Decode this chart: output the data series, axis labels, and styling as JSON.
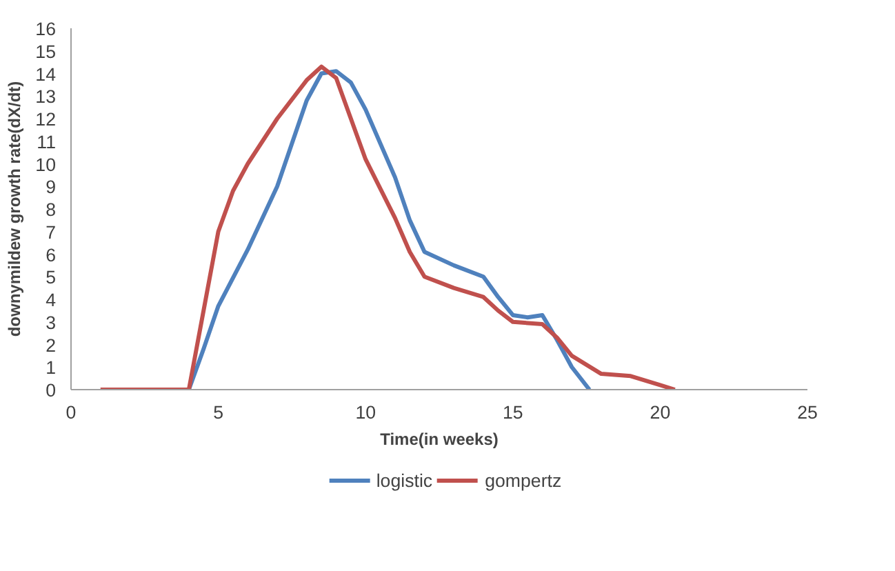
{
  "chart_data": {
    "type": "line",
    "xlabel": "Time(in weeks)",
    "ylabel": "downymildew growth rate(dX/dt)",
    "xlim": [
      0,
      25
    ],
    "xticks": [
      0,
      5,
      10,
      15,
      20,
      25
    ],
    "ylim": [
      0,
      16
    ],
    "yticks": [
      0,
      1,
      2,
      3,
      4,
      5,
      6,
      7,
      8,
      9,
      10,
      11,
      12,
      13,
      14,
      15,
      16
    ],
    "grid": false,
    "legend": "bottom",
    "line_style": "solid",
    "marker": "none",
    "series": [
      {
        "name": "logistic",
        "color": "#4f81bd",
        "x": [
          4,
          4.5,
          5,
          6,
          7,
          8,
          8.5,
          9,
          9.5,
          10,
          11,
          11.5,
          12,
          13,
          14,
          14.5,
          15,
          15.5,
          16,
          16.5,
          17,
          17.6
        ],
        "values": [
          0,
          1.8,
          3.7,
          6.2,
          9,
          12.8,
          14,
          14.1,
          13.6,
          12.4,
          9.4,
          7.5,
          6.1,
          5.5,
          5,
          4.1,
          3.3,
          3.2,
          3.3,
          2.2,
          1,
          0
        ]
      },
      {
        "name": "gompertz",
        "color": "#c0504d",
        "x": [
          1,
          2,
          3,
          4,
          4.5,
          5,
          5.5,
          6,
          7,
          8,
          8.5,
          9,
          9.5,
          10,
          11,
          11.5,
          12,
          13,
          14,
          14.5,
          15,
          16,
          16.5,
          17,
          18,
          19,
          20,
          20.5
        ],
        "values": [
          0,
          0,
          0,
          0,
          3.5,
          7,
          8.8,
          10,
          12,
          13.7,
          14.3,
          13.8,
          12,
          10.2,
          7.6,
          6.1,
          5,
          4.5,
          4.1,
          3.5,
          3,
          2.9,
          2.3,
          1.5,
          0.7,
          0.6,
          0.2,
          0
        ]
      }
    ]
  }
}
